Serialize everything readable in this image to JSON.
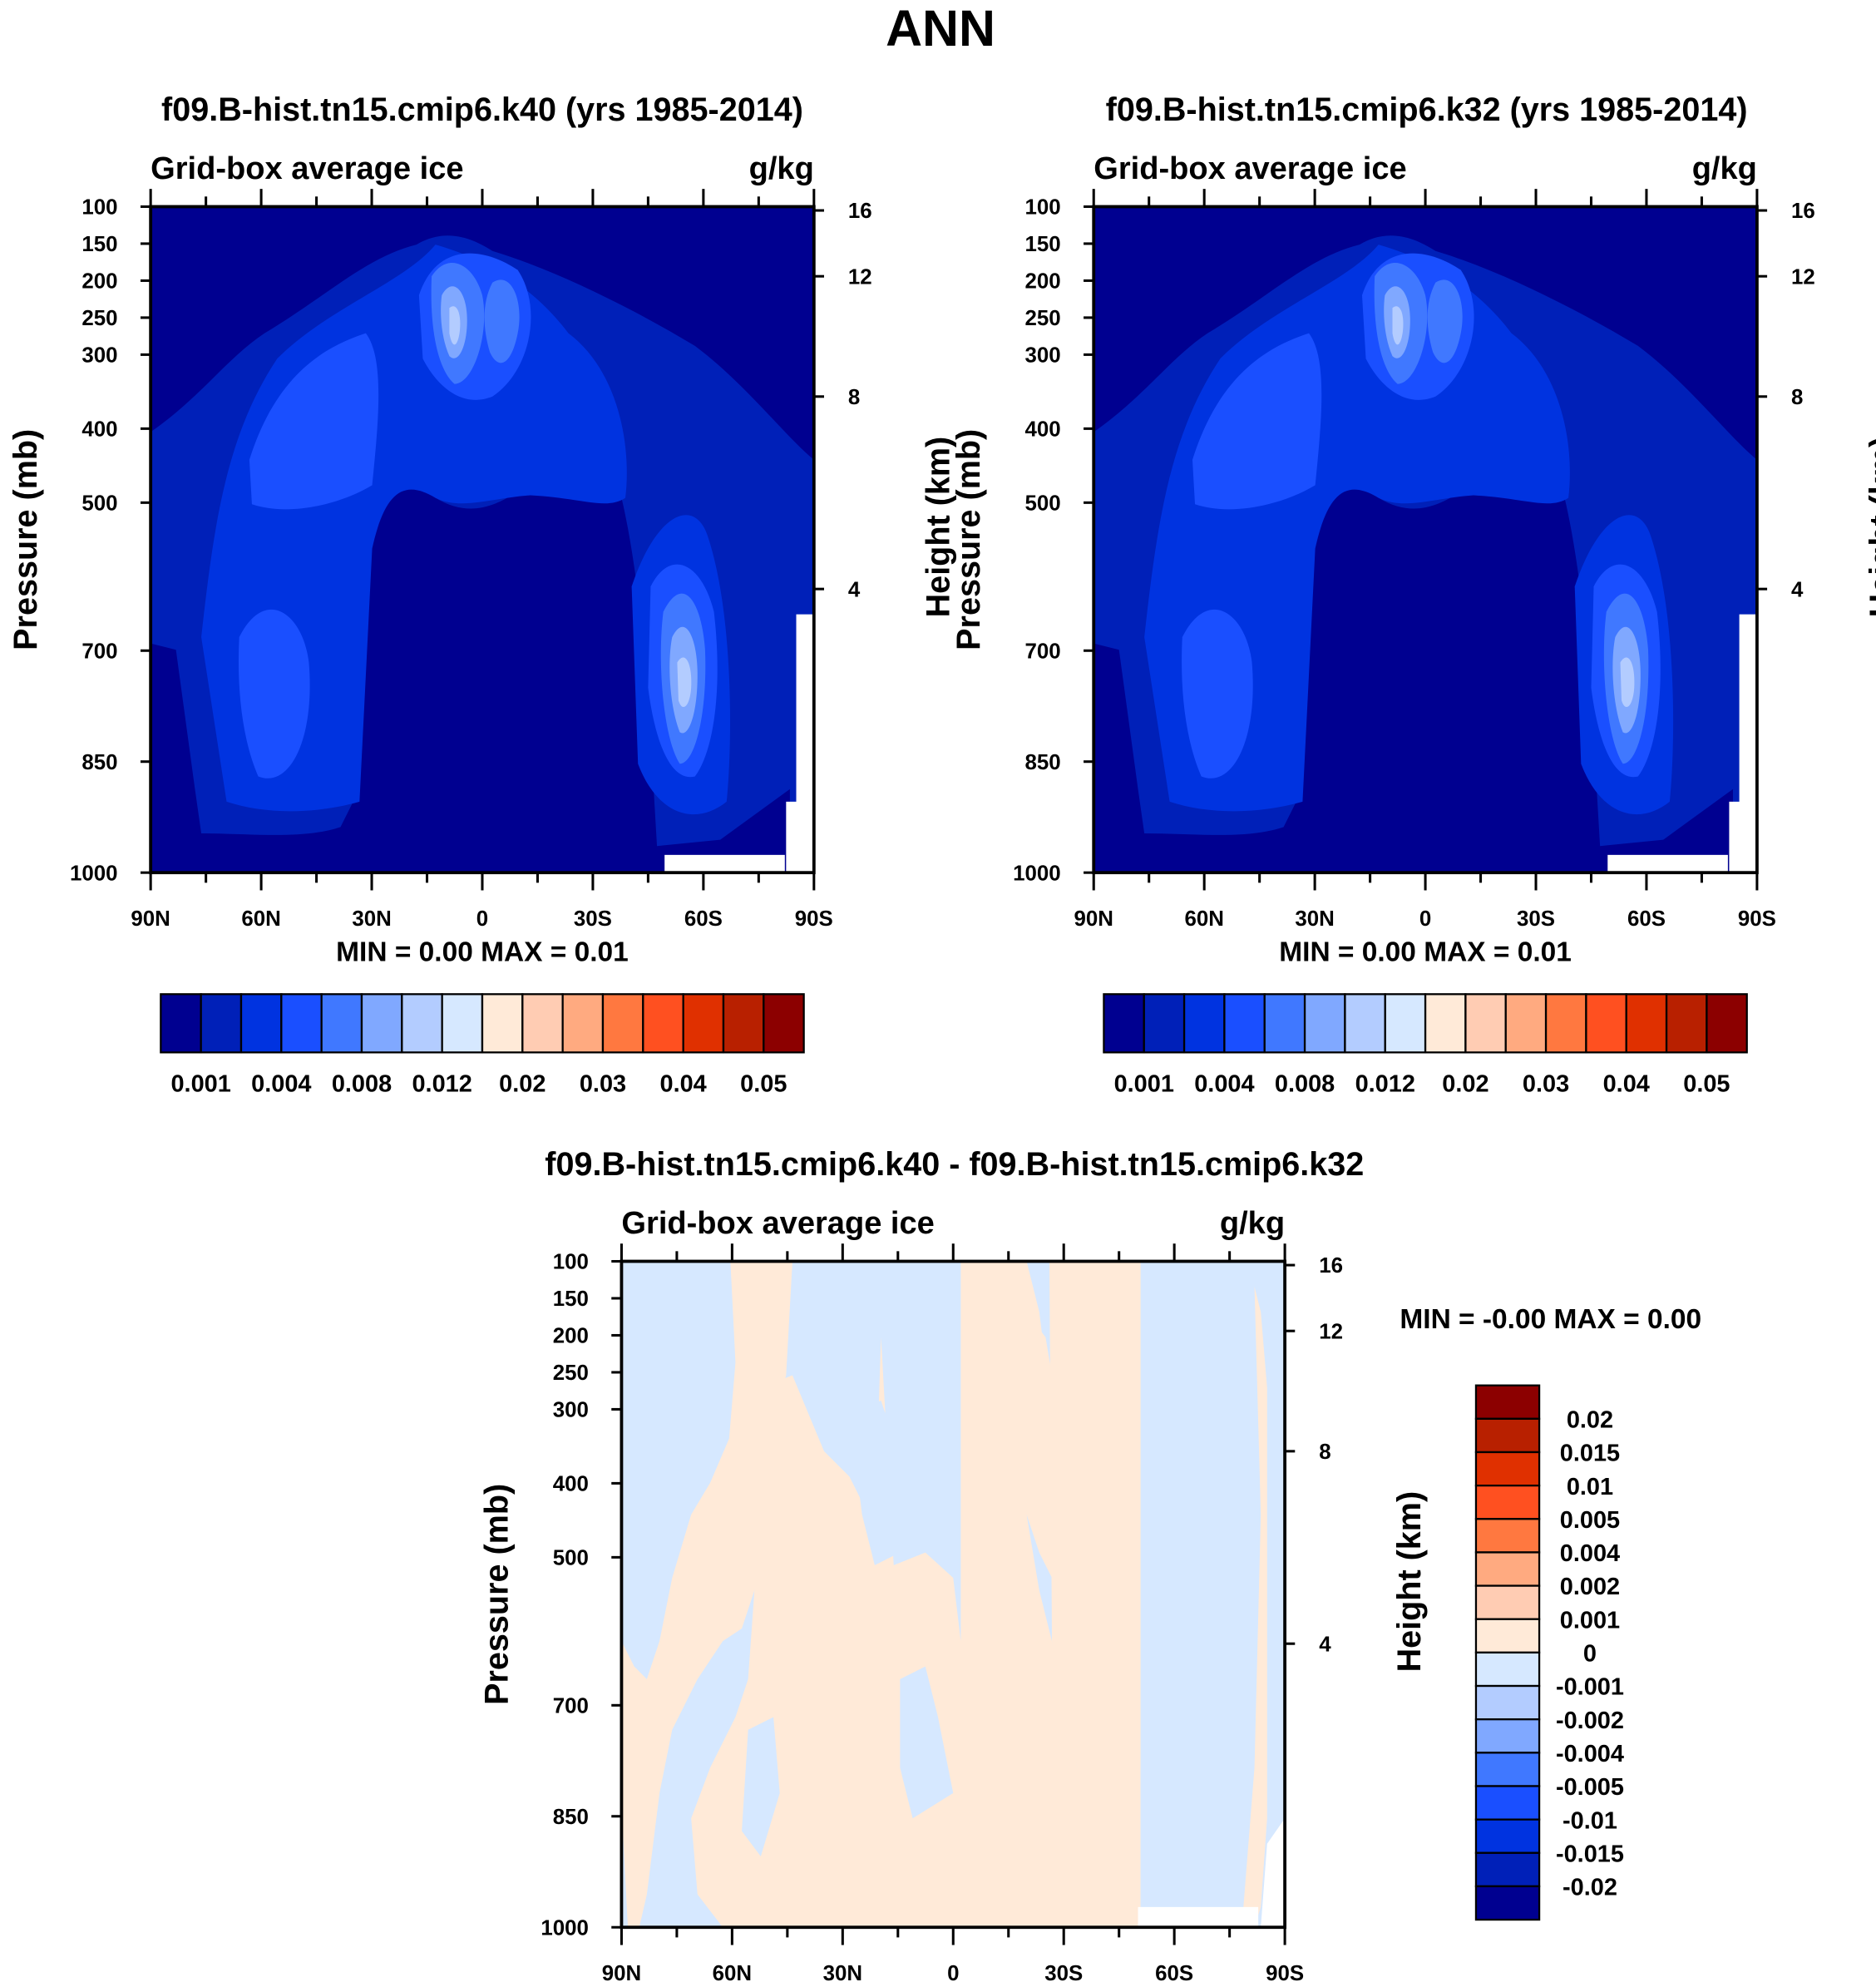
{
  "title": "ANN",
  "colors": {
    "abs_levels": [
      "#000090",
      "#0020b8",
      "#0033e0",
      "#1a4fff",
      "#4078ff",
      "#80a8ff",
      "#b3ccff",
      "#d6e8ff",
      "#ffead8",
      "#ffccb3",
      "#ffaa80",
      "#ff7840",
      "#ff5020",
      "#e03000",
      "#b82000",
      "#8c0000"
    ]
  },
  "chart_data": [
    {
      "type": "heatmap",
      "title": "f09.B-hist.tn15.cmip6.k40 (yrs 1985-2014)",
      "left_label": "Grid-box average ice",
      "units": "g/kg",
      "ylabel": "Pressure (mb)",
      "y2label": "Height (km)",
      "ylim": [
        1000,
        100
      ],
      "yticks": [
        "100",
        "150",
        "200",
        "250",
        "300",
        "400",
        "500",
        "700",
        "850",
        "1000"
      ],
      "y2ticks": [
        "16",
        "12",
        "8",
        "4"
      ],
      "xticks": [
        "90N",
        "60N",
        "30N",
        "0",
        "30S",
        "60S",
        "90S"
      ],
      "stats": "MIN =   0.00   MAX =   0.01",
      "colorbar_labels": [
        "0.001",
        "0.004",
        "0.008",
        "0.012",
        "0.02",
        "0.03",
        "0.04",
        "0.05"
      ]
    },
    {
      "type": "heatmap",
      "title": "f09.B-hist.tn15.cmip6.k32 (yrs 1985-2014)",
      "left_label": "Grid-box average ice",
      "units": "g/kg",
      "ylabel": "Pressure (mb)",
      "y2label": "Height (km)",
      "ylim": [
        1000,
        100
      ],
      "yticks": [
        "100",
        "150",
        "200",
        "250",
        "300",
        "400",
        "500",
        "700",
        "850",
        "1000"
      ],
      "y2ticks": [
        "16",
        "12",
        "8",
        "4"
      ],
      "xticks": [
        "90N",
        "60N",
        "30N",
        "0",
        "30S",
        "60S",
        "90S"
      ],
      "stats": "MIN =   0.00   MAX =   0.01",
      "colorbar_labels": [
        "0.001",
        "0.004",
        "0.008",
        "0.012",
        "0.02",
        "0.03",
        "0.04",
        "0.05"
      ]
    },
    {
      "type": "heatmap",
      "title": "f09.B-hist.tn15.cmip6.k40 - f09.B-hist.tn15.cmip6.k32",
      "left_label": "Grid-box average ice",
      "units": "g/kg",
      "ylabel": "Pressure (mb)",
      "y2label": "Height (km)",
      "ylim": [
        1000,
        100
      ],
      "yticks": [
        "100",
        "150",
        "200",
        "250",
        "300",
        "400",
        "500",
        "700",
        "850",
        "1000"
      ],
      "y2ticks": [
        "16",
        "12",
        "8",
        "4"
      ],
      "xticks": [
        "90N",
        "60N",
        "30N",
        "0",
        "30S",
        "60S",
        "90S"
      ],
      "stats": "MIN =  -0.00   MAX =   0.00",
      "colorbar_labels": [
        "0.02",
        "0.015",
        "0.01",
        "0.005",
        "0.004",
        "0.002",
        "0.001",
        "0",
        "-0.001",
        "-0.002",
        "-0.004",
        "-0.005",
        "-0.01",
        "-0.015",
        "-0.02"
      ]
    }
  ]
}
